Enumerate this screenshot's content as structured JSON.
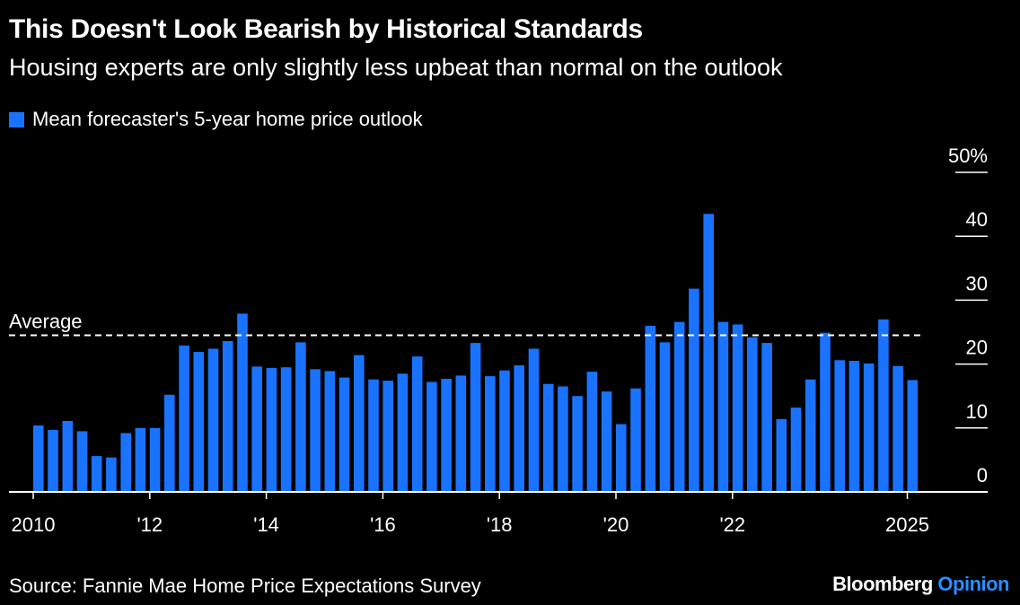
{
  "title": "This Doesn't Look Bearish by Historical Standards",
  "subtitle": "Housing experts are only slightly less upbeat than normal on the outlook",
  "source": "Source: Fannie Mae Home Price Expectations Survey",
  "brand": {
    "name": "Bloomberg",
    "section": "Opinion"
  },
  "colors": {
    "bar": "#1a73ff",
    "background": "#000000",
    "text": "#ffffff",
    "accent": "#2d8cff"
  },
  "chart_data": {
    "type": "bar",
    "legend": [
      "Mean forecaster's 5-year home price outlook"
    ],
    "series": [
      {
        "name": "Mean forecaster's 5-year home price outlook",
        "values": [
          10.4,
          9.7,
          11.1,
          9.5,
          5.6,
          5.4,
          9.2,
          10.0,
          10.0,
          15.2,
          22.9,
          21.9,
          22.4,
          23.6,
          27.9,
          19.6,
          19.4,
          19.5,
          23.4,
          19.2,
          18.9,
          17.9,
          21.4,
          17.6,
          17.4,
          18.5,
          21.2,
          17.2,
          17.7,
          18.2,
          23.3,
          18.1,
          19.0,
          19.8,
          22.4,
          16.9,
          16.5,
          15.0,
          18.8,
          15.7,
          10.6,
          16.2,
          26.0,
          23.4,
          26.6,
          31.8,
          43.5,
          26.6,
          26.2,
          24.2,
          23.3,
          11.4,
          13.2,
          17.6,
          24.9,
          20.6,
          20.5,
          20.1,
          27.0,
          19.7,
          17.5
        ]
      }
    ],
    "x_start_year": 2010,
    "points_per_year": 4,
    "x_ticks": [
      "2010",
      "'12",
      "'14",
      "'16",
      "'18",
      "'20",
      "'22",
      "2025"
    ],
    "x_tick_years": [
      2010,
      2012,
      2014,
      2016,
      2018,
      2020,
      2022,
      2025
    ],
    "y_ticks": [
      "0",
      "10",
      "20",
      "30",
      "40",
      "50%"
    ],
    "y_tick_values": [
      0,
      10,
      20,
      30,
      40,
      50
    ],
    "ylim": [
      0,
      50
    ],
    "average": {
      "label": "Average",
      "value": 24.5
    },
    "grid": false,
    "legend_position": "top-left",
    "y_axis_side": "right"
  }
}
